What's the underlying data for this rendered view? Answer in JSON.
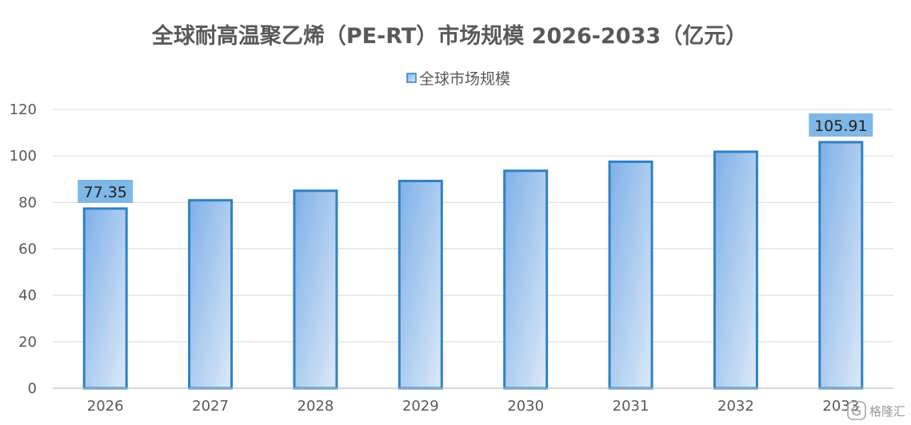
{
  "chart_data": {
    "type": "bar",
    "title": "全球耐高温聚乙烯（PE-RT）市场规模 2026-2033（亿元）",
    "categories": [
      "2026",
      "2027",
      "2028",
      "2029",
      "2030",
      "2031",
      "2032",
      "2033"
    ],
    "series": [
      {
        "name": "全球市场规模",
        "values": [
          77.35,
          80.9,
          85.0,
          89.2,
          93.6,
          97.5,
          101.8,
          105.91
        ]
      }
    ],
    "data_labels": [
      {
        "category": "2026",
        "text": "77.35"
      },
      {
        "category": "2033",
        "text": "105.91"
      }
    ],
    "yticks": [
      "0",
      "20",
      "40",
      "60",
      "80",
      "100",
      "120"
    ],
    "ylim": [
      0,
      120
    ],
    "grid": true,
    "legend_position": "top-center",
    "colors": {
      "bar_top": "#7fb0e8",
      "bar_bottom": "#dce9f8",
      "bar_border": "#2e82c4",
      "label_box": "#7fb7e6",
      "text": "#595959"
    }
  },
  "watermark": {
    "icon": "gelonghui-logo-icon",
    "text": "格隆汇"
  }
}
